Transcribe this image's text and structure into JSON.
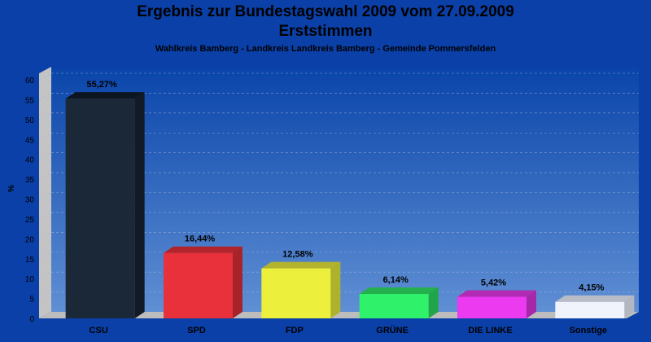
{
  "title_line1": "Ergebnis zur Bundestagswahl 2009 vom 27.09.2009",
  "title_line2": "Erststimmen",
  "subtitle": "Wahlkreis Bamberg - Landkreis Landkreis Bamberg - Gemeinde Pommersfelden",
  "colors": {
    "background": "#0a40a8",
    "plot_top": "#0a45aa",
    "plot_bottom": "#5f8fd4",
    "side_wall": "#c4c4c4",
    "floor": "#bdbdbd"
  },
  "chart_data": {
    "type": "bar",
    "ylabel": "%",
    "ylim": [
      0,
      60
    ],
    "yticks": [
      "0",
      "5",
      "10",
      "15",
      "20",
      "25",
      "30",
      "35",
      "40",
      "45",
      "50",
      "55",
      "60"
    ],
    "grid": true,
    "categories": [
      "CSU",
      "SPD",
      "FDP",
      "GRÜNE",
      "DIE LINKE",
      "Sonstige"
    ],
    "values": [
      55.27,
      16.44,
      12.58,
      6.14,
      5.42,
      4.15
    ],
    "value_labels": [
      "55,27%",
      "16,44%",
      "12,58%",
      "6,14%",
      "5,42%",
      "4,15%"
    ],
    "bar_colors": [
      {
        "front": "#1b2838",
        "top": "#0d1521",
        "side": "#111a26"
      },
      {
        "front": "#e8313a",
        "top": "#b3232a",
        "side": "#a7232a"
      },
      {
        "front": "#ecf03c",
        "top": "#b3b32d",
        "side": "#aeb12c"
      },
      {
        "front": "#2ff26a",
        "top": "#23b04d",
        "side": "#20a548"
      },
      {
        "front": "#ec3af0",
        "top": "#b12bb4",
        "side": "#a628a9"
      },
      {
        "front": "#f0f3fb",
        "top": "#b8bcc6",
        "side": "#b4b7c0"
      }
    ]
  }
}
